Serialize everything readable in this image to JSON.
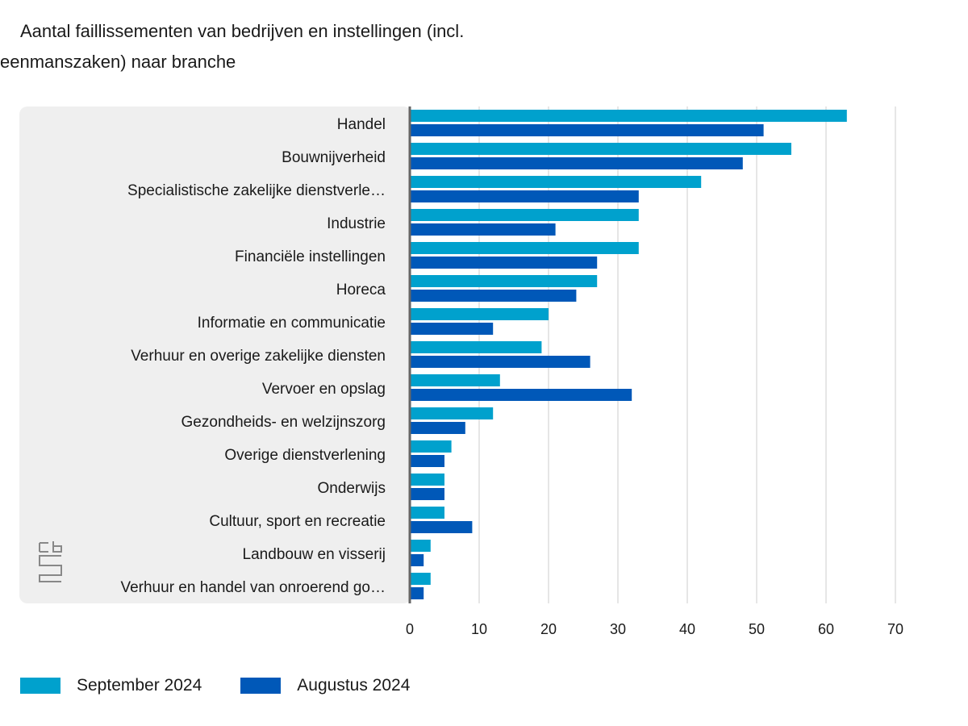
{
  "chart_data": {
    "type": "bar",
    "orientation": "horizontal",
    "title": "Aantal faillissementen van bedrijven en instellingen (incl. eenmanszaken) naar branche",
    "categories": [
      "Handel",
      "Bouwnijverheid",
      "Specialistische zakelijke dienstverle…",
      "Industrie",
      "Financiële instellingen",
      "Horeca",
      "Informatie en communicatie",
      "Verhuur en overige zakelijke diensten",
      "Vervoer en opslag",
      "Gezondheids- en welzijnszorg",
      "Overige dienstverlening",
      "Onderwijs",
      "Cultuur, sport en recreatie",
      "Landbouw en visserij",
      "Verhuur en handel van onroerend go…"
    ],
    "series": [
      {
        "name": "September 2024",
        "color": "#00a1cd",
        "values": [
          63,
          55,
          42,
          33,
          33,
          27,
          20,
          19,
          13,
          12,
          6,
          5,
          5,
          3,
          3
        ]
      },
      {
        "name": "Augustus 2024",
        "color": "#0058b8",
        "values": [
          51,
          48,
          33,
          21,
          27,
          24,
          12,
          26,
          32,
          8,
          5,
          5,
          9,
          2,
          2
        ]
      }
    ],
    "xlim": [
      0,
      70
    ],
    "xticks": [
      0,
      10,
      20,
      30,
      40,
      50,
      60,
      70
    ],
    "xlabel": "",
    "ylabel": "",
    "grid": true,
    "legend_position": "bottom-left"
  },
  "logo": {
    "icon": "cbs-logo-icon",
    "text": "cbs"
  },
  "colors": {
    "label_panel": "#efefef",
    "grid": "#cccccc",
    "axis": "#666666"
  }
}
